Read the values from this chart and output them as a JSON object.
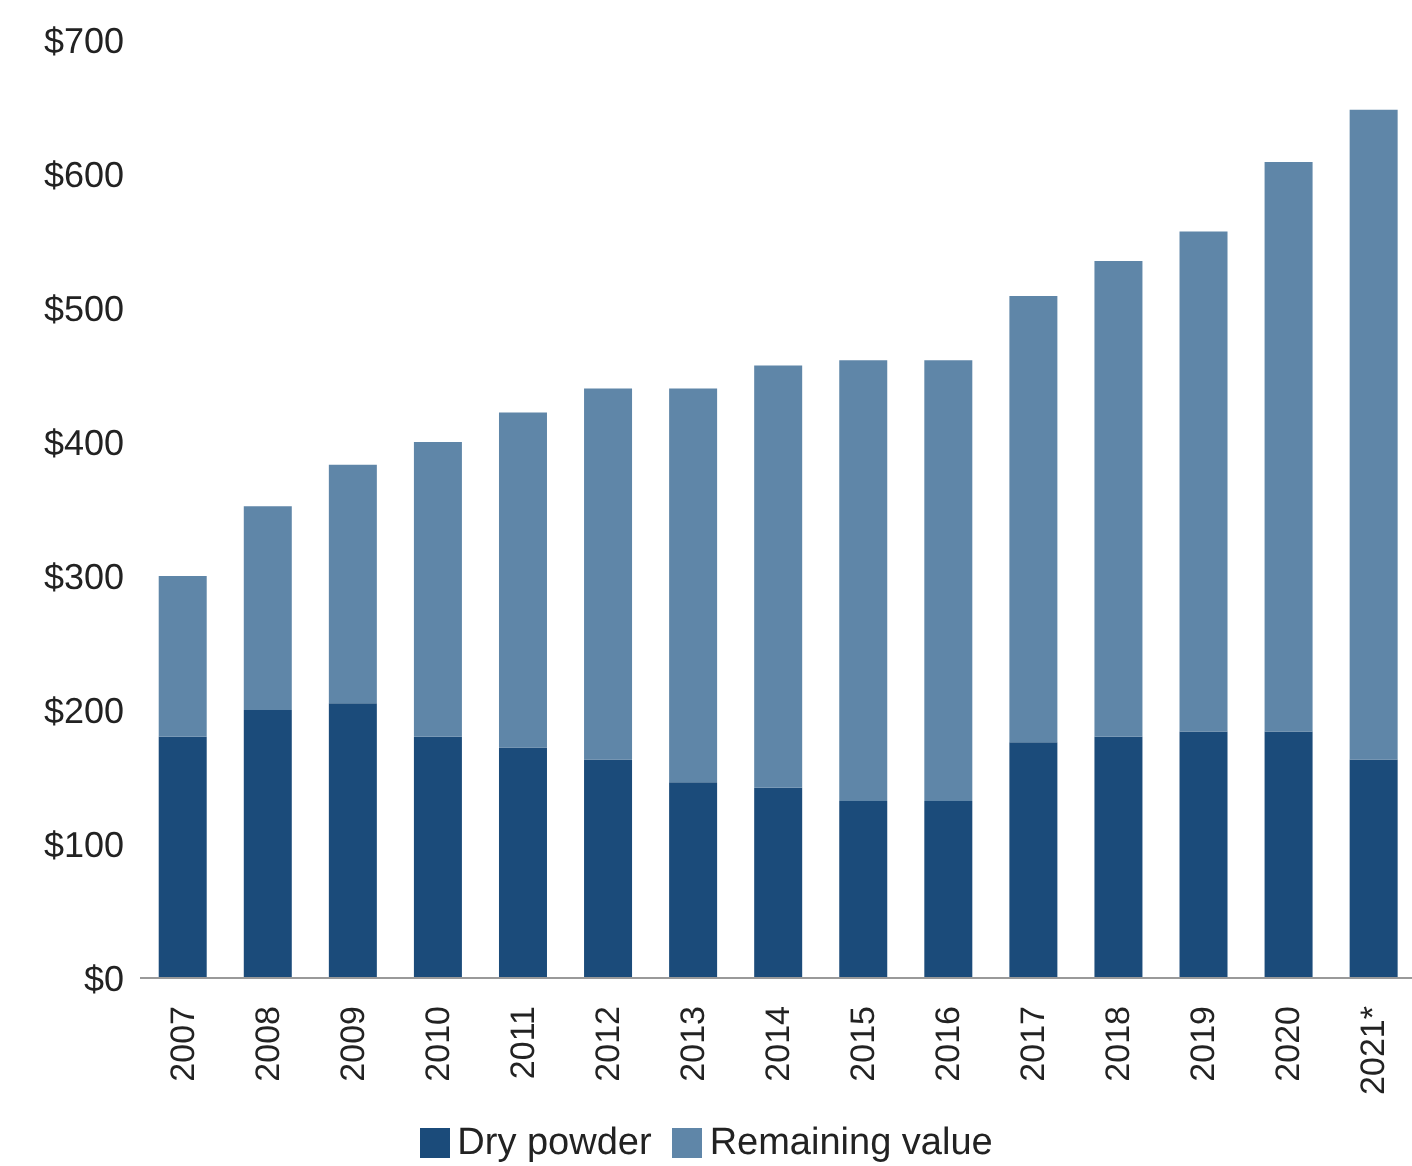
{
  "chart_data": {
    "type": "bar",
    "stacked": true,
    "categories": [
      "2007",
      "2008",
      "2009",
      "2010",
      "2011",
      "2012",
      "2013",
      "2014",
      "2015",
      "2016",
      "2017",
      "2018",
      "2019",
      "2020",
      "2021*"
    ],
    "series": [
      {
        "name": "Dry powder",
        "color": "#1b4b7a",
        "values": [
          180,
          200,
          205,
          180,
          172,
          163,
          146,
          142,
          132,
          132,
          176,
          180,
          184,
          184,
          163
        ]
      },
      {
        "name": "Remaining value",
        "color": "#5f86a8",
        "values": [
          120,
          152,
          178,
          220,
          250,
          277,
          294,
          315,
          329,
          329,
          333,
          355,
          373,
          425,
          485
        ]
      }
    ],
    "ylim": [
      0,
      700
    ],
    "yticks": [
      {
        "value": 0,
        "label": "$0"
      },
      {
        "value": 100,
        "label": "$100"
      },
      {
        "value": 200,
        "label": "$200"
      },
      {
        "value": 300,
        "label": "$300"
      },
      {
        "value": 400,
        "label": "$400"
      },
      {
        "value": 500,
        "label": "$500"
      },
      {
        "value": 600,
        "label": "$600"
      },
      {
        "value": 700,
        "label": "$700"
      }
    ],
    "grid": false,
    "legend": "bottom"
  }
}
